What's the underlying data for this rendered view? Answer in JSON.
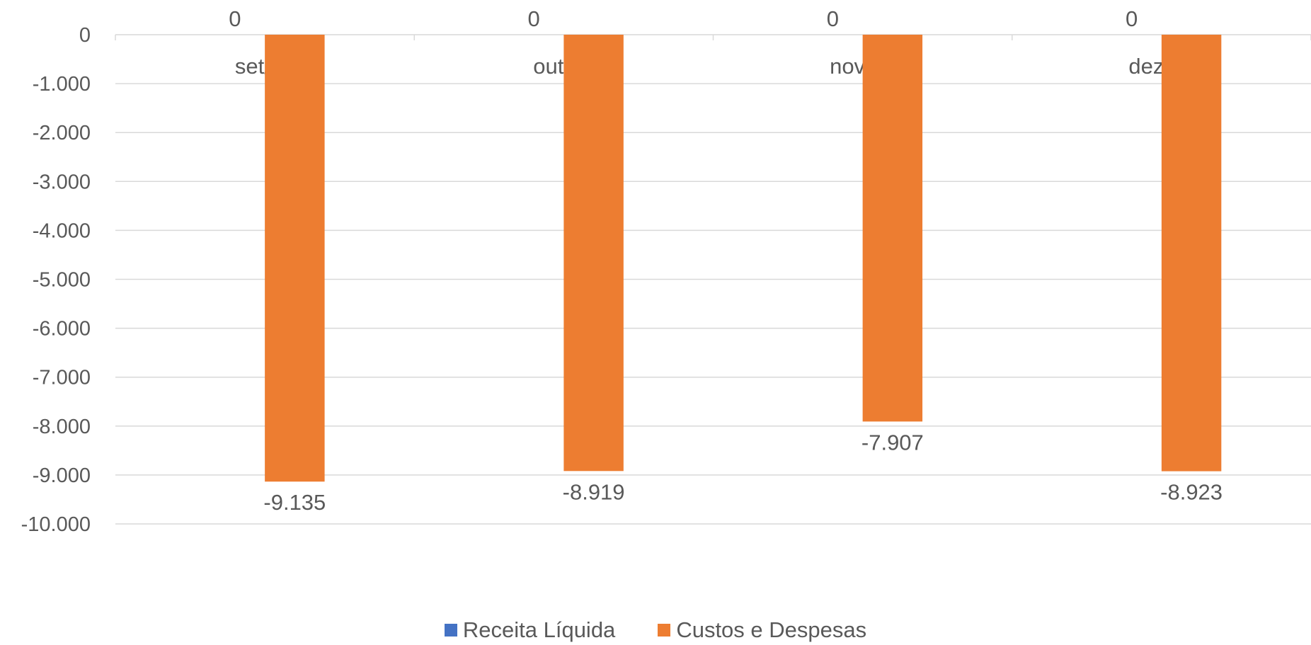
{
  "chart_data": {
    "type": "bar",
    "categories": [
      "set/21",
      "out/21",
      "nov/21",
      "dez/21"
    ],
    "series": [
      {
        "name": "Receita Líquida",
        "values": [
          0,
          0,
          0,
          0
        ],
        "labels": [
          "0",
          "0",
          "0",
          "0"
        ],
        "color": "#4472C4"
      },
      {
        "name": "Custos e Despesas",
        "values": [
          -9135,
          -8919,
          -7907,
          -8923
        ],
        "labels": [
          "-9.135",
          "-8.919",
          "-7.907",
          "-8.923"
        ],
        "color": "#ED7D31"
      }
    ],
    "ylim": [
      -10000,
      0
    ],
    "yticks": [
      "0",
      "-1.000",
      "-2.000",
      "-3.000",
      "-4.000",
      "-5.000",
      "-6.000",
      "-7.000",
      "-8.000",
      "-9.000",
      "-10.000"
    ],
    "grid": true,
    "legend_position": "bottom",
    "title": "",
    "xlabel": "",
    "ylabel": ""
  }
}
